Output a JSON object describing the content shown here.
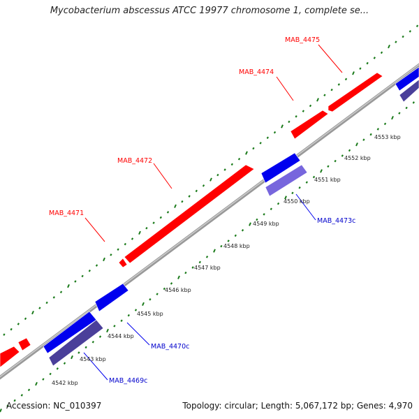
{
  "title": "Mycobacterium abscessus ATCC 19977 chromosome 1, complete se...",
  "footer": {
    "accession": "Accession: NC_010397",
    "summary": "Topology: circular; Length: 5,067,172 bp; Genes: 4,970"
  },
  "colors": {
    "forward_gene": "#ff0000",
    "reverse_gene": "#0000ee",
    "reverse_gene_secondary": "#4a3f9a",
    "reverse_gene_secondary_alt": "#7766dd",
    "backbone": "#999999",
    "ticks": "#1a7a1a"
  },
  "ticks": [
    {
      "label": "4542 kbp"
    },
    {
      "label": "4543 kbp"
    },
    {
      "label": "4544 kbp"
    },
    {
      "label": "4545 kbp"
    },
    {
      "label": "4546 kbp"
    },
    {
      "label": "4547 kbp"
    },
    {
      "label": "4548 kbp"
    },
    {
      "label": "4549 kbp"
    },
    {
      "label": "4550 kbp"
    },
    {
      "label": "4551 kbp"
    },
    {
      "label": "4552 kbp"
    },
    {
      "label": "4553 kbp"
    }
  ],
  "gene_labels": [
    {
      "name": "MAB_4475",
      "strand": "forward"
    },
    {
      "name": "MAB_4474",
      "strand": "forward"
    },
    {
      "name": "MAB_4472",
      "strand": "forward"
    },
    {
      "name": "MAB_4471",
      "strand": "forward"
    },
    {
      "name": "MAB_4473c",
      "strand": "reverse"
    },
    {
      "name": "MAB_4470c",
      "strand": "reverse"
    },
    {
      "name": "MAB_4469c",
      "strand": "reverse"
    }
  ]
}
